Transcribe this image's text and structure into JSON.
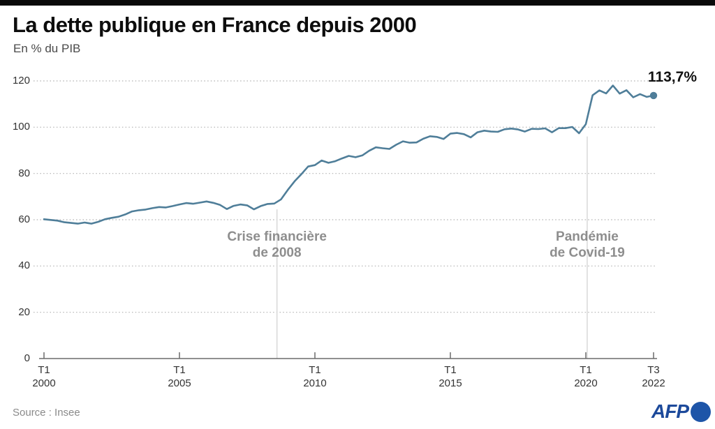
{
  "header": {
    "title": "La dette publique en France depuis 2000",
    "subtitle": "En % du PIB"
  },
  "footer": {
    "source": "Source : Insee",
    "logo_text": "AFP"
  },
  "colors": {
    "line": "#4f7e99",
    "grid": "#b0b0b0",
    "axis": "#6b6b6b",
    "annotation_line": "#d8d8d8",
    "annotation_text": "#8e8e8e",
    "afp_blue": "#1e55a8"
  },
  "chart_data": {
    "type": "line",
    "title": "La dette publique en France depuis 2000",
    "ylabel": "En % du PIB",
    "x_start_year": 2000,
    "x_step_years": 0.25,
    "x_unit": "trimestre",
    "ylim": [
      0,
      120
    ],
    "yticks": [
      0,
      20,
      40,
      60,
      80,
      100,
      120
    ],
    "grid": "dotted-horizontal",
    "legend": "none",
    "line_color": "#4f7e99",
    "end_label": "113,7%",
    "end_value": 113.7,
    "xticks": [
      {
        "quarter": "T1",
        "year": "2000"
      },
      {
        "quarter": "T1",
        "year": "2005"
      },
      {
        "quarter": "T1",
        "year": "2010"
      },
      {
        "quarter": "T1",
        "year": "2015"
      },
      {
        "quarter": "T1",
        "year": "2020"
      },
      {
        "quarter": "T3",
        "year": "2022"
      }
    ],
    "values": [
      60.2,
      59.9,
      59.6,
      58.9,
      58.6,
      58.3,
      58.8,
      58.3,
      59.1,
      60.2,
      60.8,
      61.3,
      62.3,
      63.6,
      64.1,
      64.4,
      65.0,
      65.5,
      65.3,
      65.9,
      66.6,
      67.2,
      66.9,
      67.4,
      67.9,
      67.3,
      66.4,
      64.6,
      66.0,
      66.6,
      66.2,
      64.5,
      65.9,
      66.8,
      67.0,
      68.8,
      72.9,
      76.6,
      79.7,
      83.0,
      83.6,
      85.6,
      84.6,
      85.3,
      86.5,
      87.6,
      87.0,
      87.8,
      89.8,
      91.3,
      90.9,
      90.6,
      92.4,
      93.9,
      93.3,
      93.4,
      95.0,
      96.1,
      95.8,
      94.9,
      97.2,
      97.5,
      97.0,
      95.6,
      97.8,
      98.5,
      98.1,
      98.0,
      99.1,
      99.4,
      99.0,
      98.1,
      99.3,
      99.2,
      99.5,
      97.8,
      99.6,
      99.6,
      100.1,
      97.4,
      101.3,
      113.8,
      115.9,
      114.6,
      118.0,
      114.5,
      116.0,
      112.9,
      114.3,
      113.1,
      113.7
    ],
    "annotations": [
      {
        "line1": "Crise financière",
        "line2": "de 2008",
        "x_year": 2008.6,
        "top_value": 64.5
      },
      {
        "line1": "Pandémie",
        "line2": "de Covid-19",
        "x_year": 2020.05,
        "top_value": 96.0
      }
    ]
  }
}
